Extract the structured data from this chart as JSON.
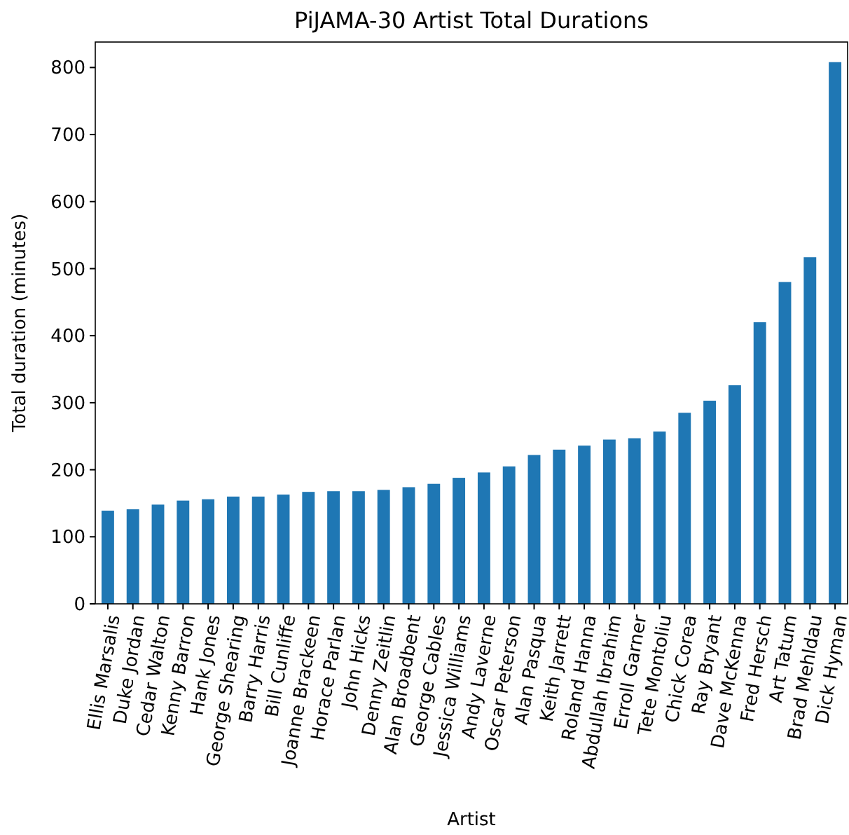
{
  "chart_data": {
    "type": "bar",
    "title": "PiJAMA-30 Artist Total Durations",
    "xlabel": "Artist",
    "ylabel": "Total duration (minutes)",
    "categories": [
      "Ellis Marsalis",
      "Duke Jordan",
      "Cedar Walton",
      "Kenny Barron",
      "Hank Jones",
      "George Shearing",
      "Barry Harris",
      "Bill Cunliffe",
      "Joanne Brackeen",
      "Horace Parlan",
      "John Hicks",
      "Denny Zeitlin",
      "Alan Broadbent",
      "George Cables",
      "Jessica Williams",
      "Andy Laverne",
      "Oscar Peterson",
      "Alan Pasqua",
      "Keith Jarrett",
      "Roland Hanna",
      "Abdullah Ibrahim",
      "Erroll Garner",
      "Tete Montoliu",
      "Chick Corea",
      "Ray Bryant",
      "Dave McKenna",
      "Fred Hersch",
      "Art Tatum",
      "Brad Mehldau",
      "Dick Hyman"
    ],
    "values": [
      139,
      141,
      148,
      154,
      156,
      160,
      160,
      163,
      167,
      168,
      168,
      170,
      174,
      179,
      188,
      196,
      205,
      222,
      230,
      236,
      245,
      247,
      257,
      285,
      303,
      326,
      420,
      480,
      517,
      808
    ],
    "color": "#1f77b4",
    "ylim": [
      0,
      838
    ],
    "yticks": [
      0,
      100,
      200,
      300,
      400,
      500,
      600,
      700,
      800
    ],
    "grid": false
  }
}
